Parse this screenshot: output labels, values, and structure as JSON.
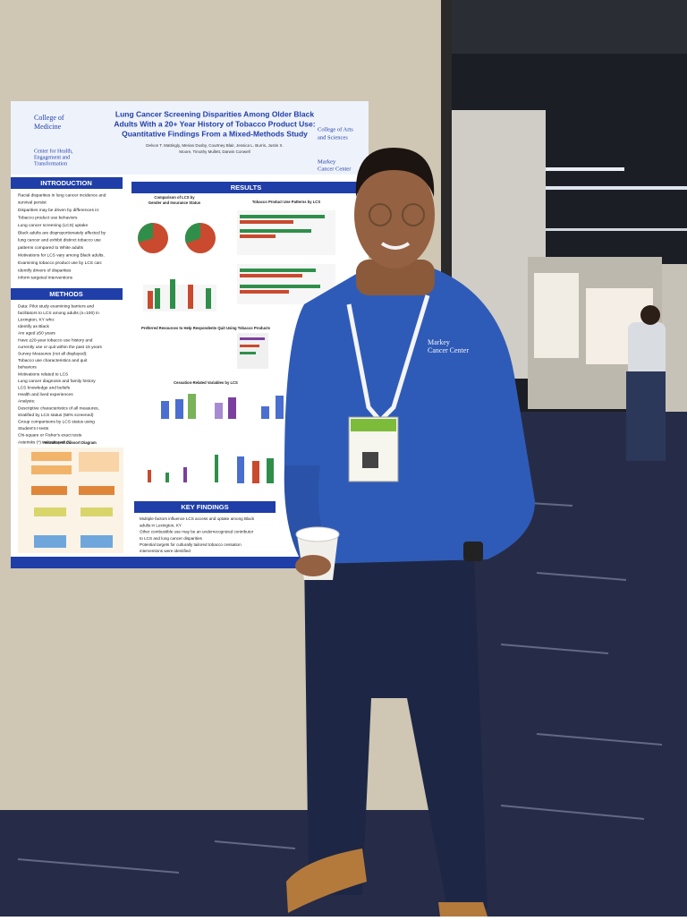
{
  "poster": {
    "title": [
      "Lung Cancer Screening Disparities Among Older Black",
      "Adults With a 20+ Year History of Tobacco Product Use:",
      "Quantitative Findings From a Mixed-Methods Study"
    ],
    "authors": [
      "Delvon T. Mattingly, Merian Dusby, Courtney Blair, Jessica L. Burris, Justin X.",
      "Moore, Timothy Mullett, Darwin Conwell"
    ],
    "logos_left": [
      "College of",
      "Medicine",
      "Center for Health,",
      "Engagement and",
      "Transformation"
    ],
    "logos_right": [
      "College of Arts",
      "and Sciences",
      "Markey",
      "Cancer Center"
    ],
    "introduction": {
      "heading": "INTRODUCTION",
      "items": [
        "Racial disparities in lung cancer incidence and",
        "survival persist",
        "Disparities may be driven by differences in:",
        "Tobacco product use behaviors",
        "Lung cancer screening (LCS) uptake",
        "Black adults are disproportionately affected by",
        "lung cancer and exhibit distinct tobacco use",
        "patterns compared to White adults",
        "Motivations for LCS vary among Black adults.",
        "Examining tobacco product use by LCS can:",
        "Identify drivers of disparities",
        "Inform targeted interventions"
      ]
    },
    "methods": {
      "heading": "METHODS",
      "items": [
        "Data: Pilot study examining barriers and",
        "facilitators to LCS among adults (n=100) in",
        "Lexington, KY who:",
        "Identify as Black",
        "Are aged ≥50 years",
        "Have ≥20-year tobacco use history and",
        "currently use or quit within the past 15 years",
        "Survey Measures (not all displayed):",
        "Tobacco use characteristics and quit",
        "behaviors",
        "Motivations related to LCS",
        "Lung cancer diagnosis and family history",
        "LCS knowledge and beliefs",
        "Health and lived experiences",
        "Analysis:",
        "Descriptive characteristics of all measures,",
        "stratified by LCS status (58% screened)",
        "Group comparisons by LCS status using",
        "Student's t-tests",
        "Chi-square or Fisher's exact tests",
        "Asterisks (*) indicate p<0.05"
      ]
    },
    "results": {
      "heading": "RESULTS",
      "subtitles": [
        "Comparison of LCS by",
        "Gender and Insurance Status",
        "Tobacco Product Use Patterns by LCS",
        "Preferred Resources to Help Respondents Quit Using Tobacco Products",
        "Cessation-Related Variables by LCS",
        "Recruitment Consort Diagram"
      ]
    },
    "key_findings": {
      "heading": "KEY FINDINGS",
      "items": [
        "Multiple factors influence LCS access and uptake among Black",
        "adults in Lexington, KY",
        "Other combustible use may be an underrecognized contributor",
        "to LCS and lung cancer disparities",
        "Potential targets for culturally tailored tobacco cessation",
        "interventions were identified"
      ]
    }
  },
  "sweater_logo": [
    "Markey",
    "Cancer Center"
  ]
}
